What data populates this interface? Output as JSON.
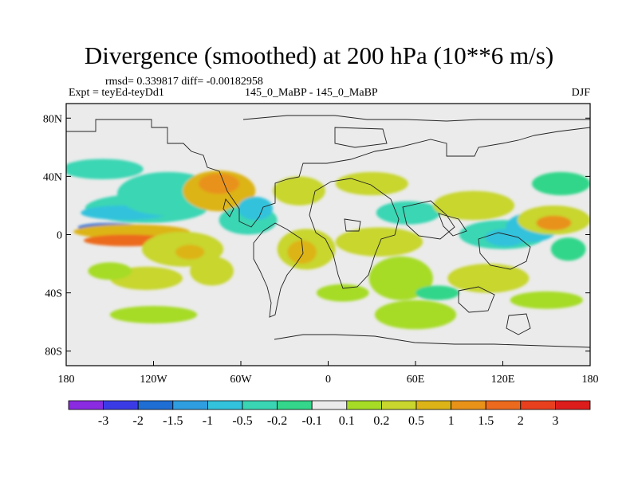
{
  "chart_data": {
    "type": "heatmap",
    "title": "Divergence (smoothed) at 200 hPa (10**6 m/s)",
    "subtitle_stats": "rmsd= 0.339817 diff= -0.00182958",
    "left_label": "Expt = teyEd-teyDd1",
    "center_label": "145_0_MaBP - 145_0_MaBP",
    "right_label": "DJF",
    "x_axis": {
      "ticks": [
        "180",
        "120W",
        "60W",
        "0",
        "60E",
        "120E",
        "180"
      ],
      "range": [
        -180,
        180
      ]
    },
    "y_axis": {
      "ticks": [
        "80N",
        "40N",
        "0",
        "40S",
        "80S"
      ],
      "range": [
        -90,
        90
      ]
    },
    "colorbar": {
      "labels": [
        "-3",
        "-2",
        "-1.5",
        "-1",
        "-0.5",
        "-0.2",
        "-0.1",
        "0.1",
        "0.2",
        "0.5",
        "1",
        "1.5",
        "2",
        "3"
      ],
      "colors": [
        "#8a2be2",
        "#3b3be6",
        "#1f6ed4",
        "#2f9ee0",
        "#33c2dc",
        "#3ad6b4",
        "#33d68a",
        "#ebebeb",
        "#a6dc26",
        "#c8d62e",
        "#ddb418",
        "#e8921a",
        "#ec6a1e",
        "#e8401e",
        "#dd1c1c"
      ]
    },
    "blobs": [
      {
        "lon": -155,
        "lat": 45,
        "rx": 28,
        "ry": 7,
        "level": -2
      },
      {
        "lon": -125,
        "lat": 18,
        "rx": 42,
        "ry": 10,
        "level": -2
      },
      {
        "lon": -140,
        "lat": 15,
        "rx": 30,
        "ry": 5,
        "level": -3
      },
      {
        "lon": -150,
        "lat": 5,
        "rx": 22,
        "ry": 3,
        "level": -5
      },
      {
        "lon": -110,
        "lat": 28,
        "rx": 35,
        "ry": 15,
        "level": -2
      },
      {
        "lon": -135,
        "lat": 2,
        "rx": 40,
        "ry": 5,
        "level": 3
      },
      {
        "lon": -138,
        "lat": -4,
        "rx": 30,
        "ry": 4,
        "level": 5
      },
      {
        "lon": -75,
        "lat": 30,
        "rx": 25,
        "ry": 14,
        "level": 3
      },
      {
        "lon": -75,
        "lat": 35,
        "rx": 14,
        "ry": 7,
        "level": 4
      },
      {
        "lon": -55,
        "lat": 10,
        "rx": 20,
        "ry": 10,
        "level": -2
      },
      {
        "lon": -50,
        "lat": 18,
        "rx": 12,
        "ry": 8,
        "level": -3
      },
      {
        "lon": -100,
        "lat": -10,
        "rx": 28,
        "ry": 12,
        "level": 2
      },
      {
        "lon": -95,
        "lat": -12,
        "rx": 10,
        "ry": 5,
        "level": 3
      },
      {
        "lon": -80,
        "lat": -25,
        "rx": 15,
        "ry": 10,
        "level": 2
      },
      {
        "lon": -125,
        "lat": -30,
        "rx": 25,
        "ry": 8,
        "level": 2
      },
      {
        "lon": -150,
        "lat": -25,
        "rx": 15,
        "ry": 6,
        "level": 1
      },
      {
        "lon": -20,
        "lat": 30,
        "rx": 18,
        "ry": 10,
        "level": 2
      },
      {
        "lon": -15,
        "lat": -10,
        "rx": 20,
        "ry": 14,
        "level": 2
      },
      {
        "lon": -18,
        "lat": -12,
        "rx": 10,
        "ry": 8,
        "level": 3
      },
      {
        "lon": 30,
        "lat": 35,
        "rx": 25,
        "ry": 8,
        "level": 2
      },
      {
        "lon": 55,
        "lat": 15,
        "rx": 22,
        "ry": 8,
        "level": -2
      },
      {
        "lon": 35,
        "lat": -5,
        "rx": 30,
        "ry": 10,
        "level": 2
      },
      {
        "lon": 50,
        "lat": -30,
        "rx": 22,
        "ry": 15,
        "level": 1
      },
      {
        "lon": 60,
        "lat": -55,
        "rx": 28,
        "ry": 10,
        "level": 1
      },
      {
        "lon": 75,
        "lat": -40,
        "rx": 15,
        "ry": 5,
        "level": -1
      },
      {
        "lon": 100,
        "lat": 20,
        "rx": 28,
        "ry": 10,
        "level": 2
      },
      {
        "lon": 120,
        "lat": 0,
        "rx": 30,
        "ry": 10,
        "level": -2
      },
      {
        "lon": 122,
        "lat": -2,
        "rx": 14,
        "ry": 6,
        "level": -3
      },
      {
        "lon": 140,
        "lat": 5,
        "rx": 18,
        "ry": 10,
        "level": -3
      },
      {
        "lon": 155,
        "lat": 10,
        "rx": 25,
        "ry": 10,
        "level": 2
      },
      {
        "lon": 155,
        "lat": 8,
        "rx": 12,
        "ry": 5,
        "level": 4
      },
      {
        "lon": 110,
        "lat": -30,
        "rx": 28,
        "ry": 10,
        "level": 2
      },
      {
        "lon": 160,
        "lat": 35,
        "rx": 20,
        "ry": 8,
        "level": -1
      },
      {
        "lon": 165,
        "lat": -10,
        "rx": 12,
        "ry": 8,
        "level": -1
      },
      {
        "lon": -120,
        "lat": -55,
        "rx": 30,
        "ry": 6,
        "level": 1
      },
      {
        "lon": 10,
        "lat": -40,
        "rx": 18,
        "ry": 6,
        "level": 1
      },
      {
        "lon": 150,
        "lat": -45,
        "rx": 25,
        "ry": 6,
        "level": 1
      }
    ]
  }
}
